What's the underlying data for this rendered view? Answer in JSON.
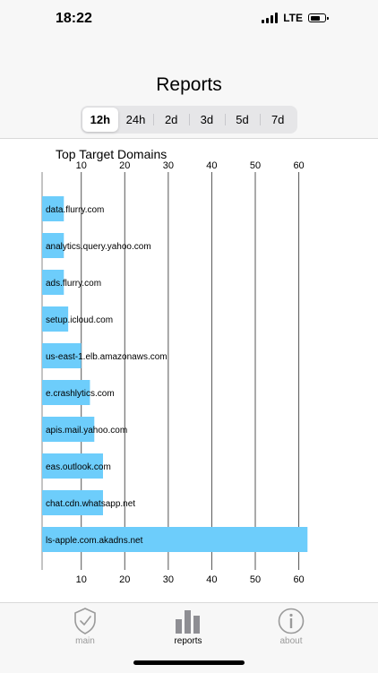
{
  "status_bar": {
    "time": "18:22",
    "network": "LTE"
  },
  "header": {
    "title": "Reports"
  },
  "range_selector": {
    "options": [
      "12h",
      "24h",
      "2d",
      "3d",
      "5d",
      "7d"
    ],
    "selected": "12h"
  },
  "tab_bar": {
    "items": [
      {
        "label": "main",
        "icon": "shield-check-icon",
        "active": false
      },
      {
        "label": "reports",
        "icon": "bar-chart-icon",
        "active": true
      },
      {
        "label": "about",
        "icon": "info-icon",
        "active": false
      }
    ]
  },
  "colors": {
    "bar": "#6dcdfb",
    "accent": "#000000",
    "inactive": "#9a9a9a"
  },
  "chart_data": {
    "type": "bar",
    "orientation": "horizontal",
    "title": "Top Target Domains",
    "categories": [
      "data.flurry.com",
      "analytics.query.yahoo.com",
      "ads.flurry.com",
      "setup.icloud.com",
      "us-east-1.elb.amazonaws.com",
      "e.crashlytics.com",
      "apis.mail.yahoo.com",
      "eas.outlook.com",
      "chat.cdn.whatsapp.net",
      "ls-apple.com.akadns.net"
    ],
    "values": [
      6,
      6,
      6,
      7,
      10,
      12,
      13,
      15,
      15,
      62
    ],
    "xlim": [
      1,
      64
    ],
    "ticks": [
      10,
      20,
      30,
      40,
      50,
      60
    ],
    "grid": true,
    "legend": "none"
  }
}
